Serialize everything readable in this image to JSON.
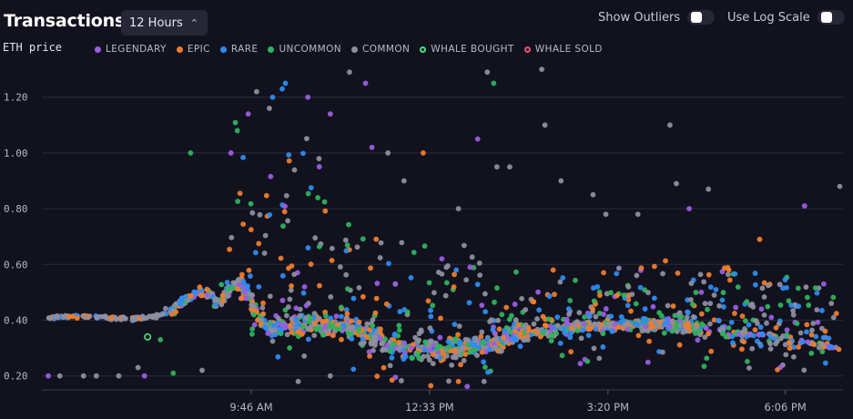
{
  "header": {
    "title": "Transactions",
    "range_value": "12 Hours",
    "range_chevron": "⌃⌄",
    "show_outliers_label": "Show Outliers",
    "log_scale_label": "Use Log Scale"
  },
  "chart_data": {
    "type": "scatter",
    "title": "Transactions",
    "ylabel": "ETH price",
    "xlabel": "",
    "ylim": [
      0.15,
      1.32
    ],
    "y_ticks": [
      "0.20",
      "0.40",
      "0.60",
      "0.80",
      "1.00",
      "1.20"
    ],
    "y_tick_values": [
      0.2,
      0.4,
      0.6,
      0.8,
      1.0,
      1.2
    ],
    "x_range_hours": [
      6.5,
      19.0
    ],
    "x_ticks": [
      "9:46 AM",
      "12:33 PM",
      "3:20 PM",
      "6:06 PM"
    ],
    "x_tick_values": [
      9.767,
      12.55,
      15.333,
      18.1
    ],
    "grid": true,
    "legend_position": "top-left",
    "series": [
      {
        "name": "LEGENDARY",
        "color": "#9b5de5",
        "style": "filled"
      },
      {
        "name": "EPIC",
        "color": "#f07c2a",
        "style": "filled"
      },
      {
        "name": "RARE",
        "color": "#2d8cf0",
        "style": "filled"
      },
      {
        "name": "UNCOMMON",
        "color": "#2fb35a",
        "style": "filled"
      },
      {
        "name": "COMMON",
        "color": "#8e8ea0",
        "style": "filled"
      },
      {
        "name": "WHALE BOUGHT",
        "color": "#4cde7a",
        "style": "ring"
      },
      {
        "name": "WHALE SOLD",
        "color": "#f0506e",
        "style": "ring"
      }
    ],
    "trend": [
      [
        6.6,
        0.41
      ],
      [
        7.0,
        0.415
      ],
      [
        7.4,
        0.41
      ],
      [
        7.8,
        0.405
      ],
      [
        8.2,
        0.41
      ],
      [
        8.5,
        0.43
      ],
      [
        8.7,
        0.47
      ],
      [
        8.9,
        0.5
      ],
      [
        9.1,
        0.49
      ],
      [
        9.25,
        0.46
      ],
      [
        9.4,
        0.5
      ],
      [
        9.55,
        0.53
      ],
      [
        9.7,
        0.5
      ],
      [
        9.85,
        0.42
      ],
      [
        10.0,
        0.37
      ],
      [
        10.3,
        0.38
      ],
      [
        10.7,
        0.39
      ],
      [
        11.0,
        0.38
      ],
      [
        11.3,
        0.37
      ],
      [
        11.6,
        0.34
      ],
      [
        11.9,
        0.31
      ],
      [
        12.2,
        0.3
      ],
      [
        12.5,
        0.29
      ],
      [
        12.8,
        0.29
      ],
      [
        13.1,
        0.3
      ],
      [
        13.4,
        0.31
      ],
      [
        13.7,
        0.33
      ],
      [
        14.0,
        0.35
      ],
      [
        14.3,
        0.36
      ],
      [
        14.6,
        0.37
      ],
      [
        15.0,
        0.38
      ],
      [
        15.4,
        0.38
      ],
      [
        15.8,
        0.385
      ],
      [
        16.2,
        0.385
      ],
      [
        16.6,
        0.38
      ],
      [
        17.0,
        0.37
      ],
      [
        17.4,
        0.35
      ],
      [
        17.8,
        0.34
      ],
      [
        18.2,
        0.33
      ],
      [
        18.6,
        0.31
      ],
      [
        18.95,
        0.3
      ]
    ],
    "outliers": [
      {
        "x": 6.6,
        "y": 0.2,
        "series": "LEGENDARY"
      },
      {
        "x": 6.78,
        "y": 0.2,
        "series": "COMMON"
      },
      {
        "x": 7.15,
        "y": 0.2,
        "series": "COMMON"
      },
      {
        "x": 7.35,
        "y": 0.2,
        "series": "COMMON"
      },
      {
        "x": 7.7,
        "y": 0.2,
        "series": "COMMON"
      },
      {
        "x": 8.0,
        "y": 0.23,
        "series": "COMMON"
      },
      {
        "x": 8.1,
        "y": 0.2,
        "series": "LEGENDARY"
      },
      {
        "x": 8.35,
        "y": 0.33,
        "series": "UNCOMMON"
      },
      {
        "x": 8.55,
        "y": 0.21,
        "series": "UNCOMMON"
      },
      {
        "x": 8.68,
        "y": 0.47,
        "series": "RARE"
      },
      {
        "x": 9.0,
        "y": 0.22,
        "series": "COMMON"
      },
      {
        "x": 8.82,
        "y": 1.0,
        "series": "UNCOMMON"
      },
      {
        "x": 9.45,
        "y": 1.0,
        "series": "LEGENDARY"
      },
      {
        "x": 9.55,
        "y": 1.08,
        "series": "UNCOMMON"
      },
      {
        "x": 9.72,
        "y": 1.14,
        "series": "LEGENDARY"
      },
      {
        "x": 9.85,
        "y": 1.22,
        "series": "COMMON"
      },
      {
        "x": 10.05,
        "y": 1.16,
        "series": "COMMON"
      },
      {
        "x": 10.1,
        "y": 1.2,
        "series": "RARE"
      },
      {
        "x": 10.25,
        "y": 1.23,
        "series": "RARE"
      },
      {
        "x": 10.3,
        "y": 1.25,
        "series": "RARE"
      },
      {
        "x": 10.65,
        "y": 1.2,
        "series": "LEGENDARY"
      },
      {
        "x": 11.0,
        "y": 1.14,
        "series": "LEGENDARY"
      },
      {
        "x": 11.3,
        "y": 1.29,
        "series": "COMMON"
      },
      {
        "x": 11.55,
        "y": 1.25,
        "series": "LEGENDARY"
      },
      {
        "x": 11.65,
        "y": 1.02,
        "series": "LEGENDARY"
      },
      {
        "x": 11.9,
        "y": 1.0,
        "series": "COMMON"
      },
      {
        "x": 12.15,
        "y": 0.9,
        "series": "COMMON"
      },
      {
        "x": 12.45,
        "y": 1.0,
        "series": "EPIC"
      },
      {
        "x": 13.0,
        "y": 0.8,
        "series": "COMMON"
      },
      {
        "x": 13.3,
        "y": 1.05,
        "series": "LEGENDARY"
      },
      {
        "x": 13.45,
        "y": 1.29,
        "series": "COMMON"
      },
      {
        "x": 13.55,
        "y": 1.25,
        "series": "UNCOMMON"
      },
      {
        "x": 13.6,
        "y": 0.95,
        "series": "COMMON"
      },
      {
        "x": 13.8,
        "y": 0.95,
        "series": "COMMON"
      },
      {
        "x": 14.3,
        "y": 1.3,
        "series": "COMMON"
      },
      {
        "x": 14.35,
        "y": 1.1,
        "series": "COMMON"
      },
      {
        "x": 14.6,
        "y": 0.9,
        "series": "COMMON"
      },
      {
        "x": 15.1,
        "y": 0.85,
        "series": "COMMON"
      },
      {
        "x": 15.3,
        "y": 0.78,
        "series": "COMMON"
      },
      {
        "x": 15.8,
        "y": 0.78,
        "series": "COMMON"
      },
      {
        "x": 16.3,
        "y": 1.1,
        "series": "COMMON"
      },
      {
        "x": 16.4,
        "y": 0.89,
        "series": "COMMON"
      },
      {
        "x": 16.6,
        "y": 0.8,
        "series": "LEGENDARY"
      },
      {
        "x": 16.9,
        "y": 0.87,
        "series": "COMMON"
      },
      {
        "x": 17.7,
        "y": 0.69,
        "series": "EPIC"
      },
      {
        "x": 18.4,
        "y": 0.81,
        "series": "LEGENDARY"
      },
      {
        "x": 18.7,
        "y": 0.53,
        "series": "LEGENDARY"
      },
      {
        "x": 18.95,
        "y": 0.88,
        "series": "COMMON"
      },
      {
        "x": 8.15,
        "y": 0.34,
        "series": "WHALE BOUGHT"
      },
      {
        "x": 13.0,
        "y": 0.18,
        "series": "EPIC"
      },
      {
        "x": 13.4,
        "y": 0.18,
        "series": "COMMON"
      },
      {
        "x": 10.5,
        "y": 0.18,
        "series": "COMMON"
      },
      {
        "x": 11.0,
        "y": 0.2,
        "series": "COMMON"
      }
    ]
  }
}
